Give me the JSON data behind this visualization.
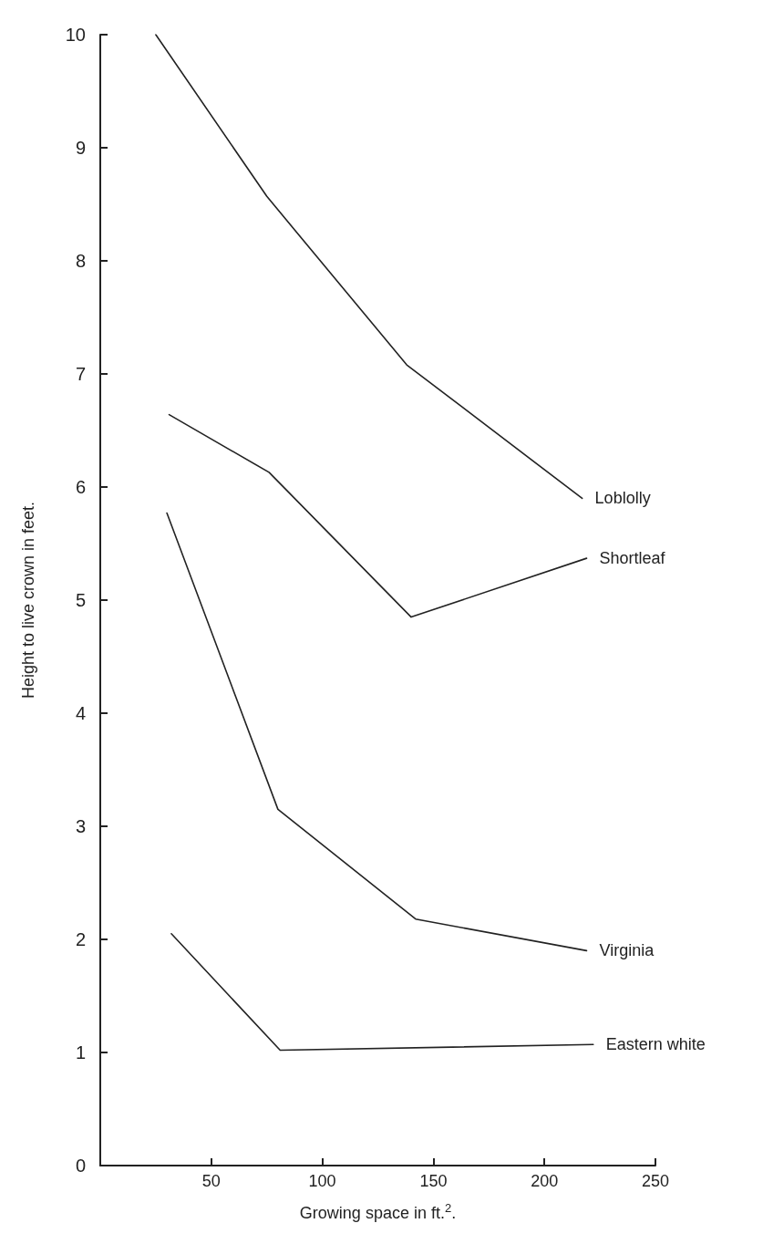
{
  "chart_data": {
    "type": "line",
    "xlabel": "Growing space in ft.$^{2}$.",
    "ylabel": "Height to live crown in feet.",
    "xlim": [
      0,
      250
    ],
    "xticks": [
      {
        "value": 0,
        "label": null
      },
      50,
      100,
      150,
      200,
      250
    ],
    "ylim": [
      0,
      10
    ],
    "yticks": [
      0,
      1,
      2,
      3,
      4,
      5,
      6,
      7,
      8,
      9,
      10
    ],
    "grid": false,
    "legend": false,
    "marker": "none",
    "line_style": "solid",
    "series": [
      {
        "name": "Loblolly",
        "color": "#222222",
        "x": [
          25,
          75,
          138,
          217
        ],
        "values": [
          10,
          8.57,
          7.08,
          5.9
        ]
      },
      {
        "name": "Shortleaf",
        "color": "#222222",
        "x": [
          31,
          76,
          140,
          219
        ],
        "values": [
          6.64,
          6.13,
          4.85,
          5.37
        ]
      },
      {
        "name": "Virginia",
        "color": "#222222",
        "x": [
          30,
          80,
          142,
          219
        ],
        "values": [
          5.77,
          3.15,
          2.18,
          1.9
        ]
      },
      {
        "name": "Eastern white",
        "color": "#222222",
        "x": [
          32,
          81,
          222
        ],
        "values": [
          2.05,
          1.02,
          1.07
        ]
      }
    ]
  }
}
